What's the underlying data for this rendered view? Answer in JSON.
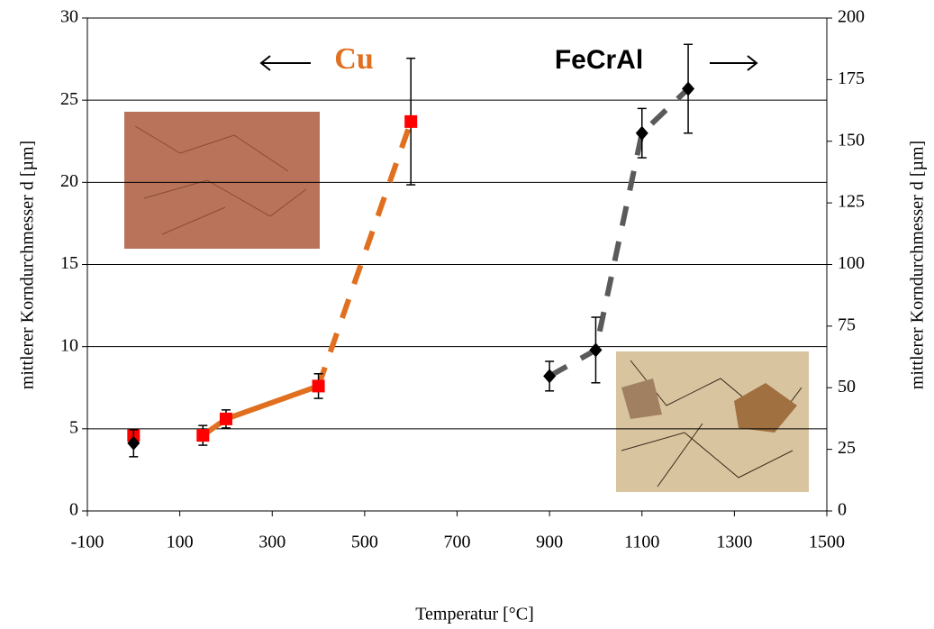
{
  "chart_data": {
    "type": "scatter",
    "x_label": "Temperatur [°C]",
    "y_label": "mittlerer Korndurchmesser d [µm]",
    "y2_label": "mittlerer Korndurchmesser d [µm]",
    "xlim": [
      -100,
      1500
    ],
    "xticks": [
      -100,
      100,
      300,
      500,
      700,
      900,
      1100,
      1300,
      1500
    ],
    "ylim": [
      0,
      30
    ],
    "yticks": [
      0,
      5,
      10,
      15,
      20,
      25,
      30
    ],
    "y2lim": [
      0,
      200
    ],
    "y2ticks": [
      0,
      25,
      50,
      75,
      100,
      125,
      150,
      175,
      200
    ],
    "grid": true,
    "series": [
      {
        "name": "Cu",
        "color": "#e07020",
        "marker_color": "#ff0000",
        "marker": "square",
        "x": [
          0,
          150,
          200,
          400,
          600
        ],
        "values": [
          4.6,
          4.6,
          5.6,
          7.6,
          23.7
        ],
        "errors": [
          null,
          0.6,
          0.55,
          0.75,
          3.85
        ]
      },
      {
        "name": "FeCrAl",
        "color": "#5a5a5a",
        "marker_color": "#000000",
        "marker": "diamond",
        "axis": "y2",
        "x": [
          0,
          900,
          1000,
          1100,
          1200
        ],
        "values": [
          27.5,
          54.7,
          65.3,
          153.3,
          171.3
        ],
        "errors": [
          5.5,
          6,
          13.3,
          10,
          18
        ]
      }
    ]
  }
}
